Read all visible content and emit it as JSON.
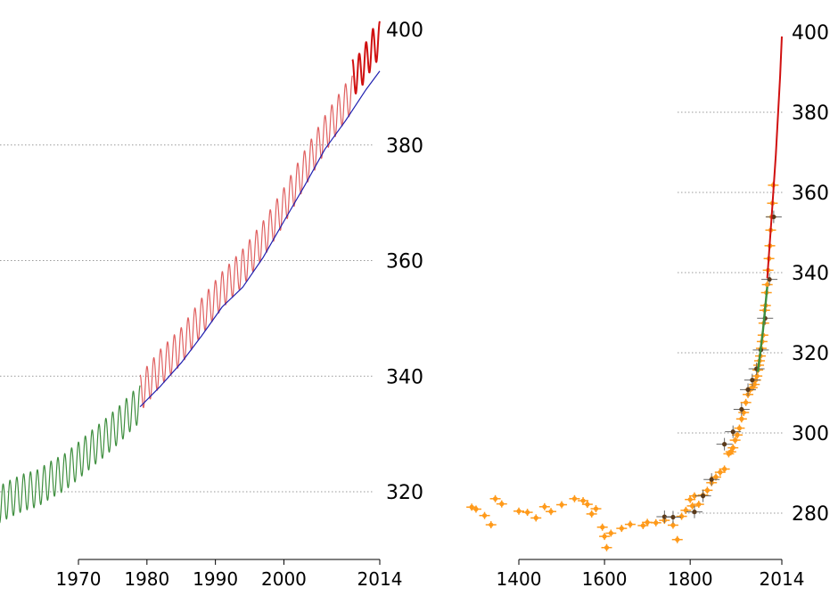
{
  "colors": {
    "green": "#3e8e3e",
    "red_line": "#e06060",
    "red_dark": "#d01010",
    "blue": "#2020b0",
    "orange": "#ff9a1a",
    "black": "#000000",
    "grid": "#999999"
  },
  "chart_data": [
    {
      "type": "line",
      "title": "",
      "xlabel": "",
      "ylabel": "",
      "xlim": [
        1958,
        2015
      ],
      "ylim": [
        312,
        402
      ],
      "x_ticks": [
        1970,
        1980,
        1990,
        2000,
        2014
      ],
      "x_tick_labels": [
        "1970",
        "1980",
        "1990",
        "2000",
        "2014"
      ],
      "y_ticks": [
        320,
        340,
        360,
        380,
        400
      ],
      "y_tick_labels": [
        "320",
        "340",
        "360",
        "380",
        "400"
      ],
      "grid": "horizontal dotted",
      "series": [
        {
          "color": "green",
          "style": "seasonal cycle",
          "x": [
            1958,
            1960,
            1962,
            1964,
            1966,
            1968,
            1970,
            1972,
            1974,
            1976,
            1978,
            1979
          ],
          "y": [
            317.5,
            318.8,
            319.9,
            320.6,
            322.1,
            323.4,
            325.4,
            327.5,
            329.5,
            331.7,
            334.2,
            335.2
          ],
          "amplitude": 3.2
        },
        {
          "color": "red_line",
          "style": "seasonal cycle",
          "x": [
            1979,
            1982,
            1985,
            1988,
            1991,
            1994,
            1997,
            2000,
            2003,
            2006,
            2009,
            2010
          ],
          "y": [
            337.0,
            341.5,
            345.2,
            350.3,
            354.9,
            358.8,
            363.7,
            369.4,
            375.8,
            381.9,
            387.4,
            388.8
          ],
          "amplitude": 3.2
        },
        {
          "color": "red_dark",
          "style": "seasonal cycle",
          "x": [
            2010,
            2011,
            2012,
            2013,
            2014
          ],
          "y": [
            391.6,
            392.6,
            394.6,
            396.9,
            398.2
          ],
          "amplitude": 3.2
        },
        {
          "color": "blue",
          "style": "trend",
          "x": [
            1979,
            1982,
            1985,
            1988,
            1991,
            1994,
            1997,
            2000,
            2003,
            2006,
            2009,
            2012,
            2014
          ],
          "y": [
            334.7,
            338.3,
            342.3,
            347.0,
            352.0,
            355.4,
            360.6,
            366.8,
            372.9,
            379.3,
            384.2,
            389.6,
            392.8
          ]
        }
      ]
    },
    {
      "type": "scatter",
      "title": "",
      "xlabel": "",
      "ylabel": "",
      "xlim": [
        1285,
        2015
      ],
      "ylim": [
        267,
        402
      ],
      "x_ticks": [
        1400,
        1600,
        1800,
        2014
      ],
      "x_tick_labels": [
        "1400",
        "1600",
        "1800",
        "2014"
      ],
      "y_ticks": [
        280,
        300,
        320,
        340,
        360,
        380,
        400
      ],
      "y_tick_labels": [
        "280",
        "300",
        "320",
        "340",
        "360",
        "380",
        "400"
      ],
      "grid": "horizontal dotted",
      "ice_core_orange": {
        "color": "orange",
        "x": [
          1290,
          1300,
          1320,
          1335,
          1345,
          1360,
          1400,
          1420,
          1440,
          1460,
          1475,
          1500,
          1530,
          1550,
          1560,
          1570,
          1580,
          1595,
          1600,
          1605,
          1615,
          1640,
          1660,
          1690,
          1700,
          1720,
          1740,
          1760,
          1770,
          1780,
          1790,
          1800,
          1805,
          1810,
          1820,
          1830,
          1840,
          1850,
          1860,
          1870,
          1880,
          1890,
          1895,
          1900,
          1905,
          1910,
          1915,
          1920,
          1925,
          1930,
          1935,
          1940,
          1945,
          1950,
          1953,
          1956,
          1958,
          1960,
          1962,
          1964,
          1966,
          1968,
          1970,
          1972,
          1974,
          1976,
          1978,
          1980,
          1982,
          1984,
          1986,
          1988,
          1990,
          1992,
          1994
        ],
        "y": [
          281.5,
          281.0,
          279.4,
          277.1,
          283.6,
          282.3,
          280.5,
          280.2,
          278.8,
          281.6,
          280.4,
          282.1,
          283.6,
          283.1,
          282.2,
          279.8,
          281.1,
          276.5,
          274.2,
          271.4,
          275.0,
          276.2,
          277.2,
          276.9,
          277.7,
          277.6,
          278.2,
          277.0,
          273.4,
          279.2,
          280.7,
          283.4,
          281.8,
          284.3,
          282.2,
          284.5,
          285.7,
          287.6,
          289.0,
          290.2,
          291.0,
          294.8,
          295.3,
          296.3,
          298.2,
          299.5,
          301.2,
          303.5,
          305.1,
          307.6,
          309.6,
          310.8,
          311.3,
          312.1,
          313.2,
          314.2,
          315.7,
          316.9,
          318.0,
          319.2,
          321.1,
          322.8,
          324.4,
          327.4,
          330.6,
          331.8,
          335.0,
          337.0,
          340.6,
          343.5,
          346.7,
          350.6,
          353.9,
          357.3,
          361.8
        ]
      },
      "ice_core_brown": {
        "color": "black",
        "x": [
          1740,
          1760,
          1810,
          1830,
          1850,
          1880,
          1900,
          1920,
          1935,
          1945,
          1955,
          1965,
          1975,
          1985,
          1995
        ],
        "y": [
          279.1,
          279.0,
          280.3,
          284.3,
          288.4,
          297.2,
          300.3,
          305.9,
          310.8,
          313.2,
          316.0,
          320.7,
          328.6,
          338.3,
          353.9
        ]
      },
      "trend_green": {
        "color": "green",
        "x": [
          1958,
          1970,
          1980
        ],
        "y": [
          315.2,
          325.6,
          336.5
        ]
      },
      "trend_red": {
        "color": "red_dark",
        "x": [
          1980,
          1990,
          2000,
          2010,
          2014
        ],
        "y": [
          338.6,
          353.6,
          369.4,
          389.0,
          398.9
        ]
      }
    }
  ]
}
